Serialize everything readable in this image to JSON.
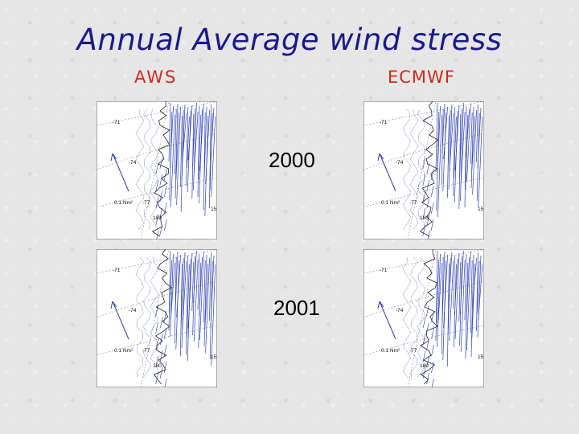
{
  "slide": {
    "title": "Annual Average wind stress",
    "columns": {
      "left": "AWS",
      "right": "ECMWF"
    },
    "years": [
      "2000",
      "2001"
    ]
  },
  "maps": [
    {
      "row": "2000",
      "column": "AWS"
    },
    {
      "row": "2000",
      "column": "ECMWF"
    },
    {
      "row": "2001",
      "column": "AWS"
    },
    {
      "row": "2001",
      "column": "ECMWF"
    }
  ],
  "map_labels": {
    "lat_top": "-71",
    "lat_mid": "-74",
    "lat_bottom": "-77",
    "lon_left": "180",
    "lon_right": "15",
    "scale_label": "0.1 Nm²"
  },
  "colors": {
    "title": "#1a1a8c",
    "column_label": "#cc2a1a",
    "vectors": "#2a3fb0",
    "coast": "#222222"
  }
}
